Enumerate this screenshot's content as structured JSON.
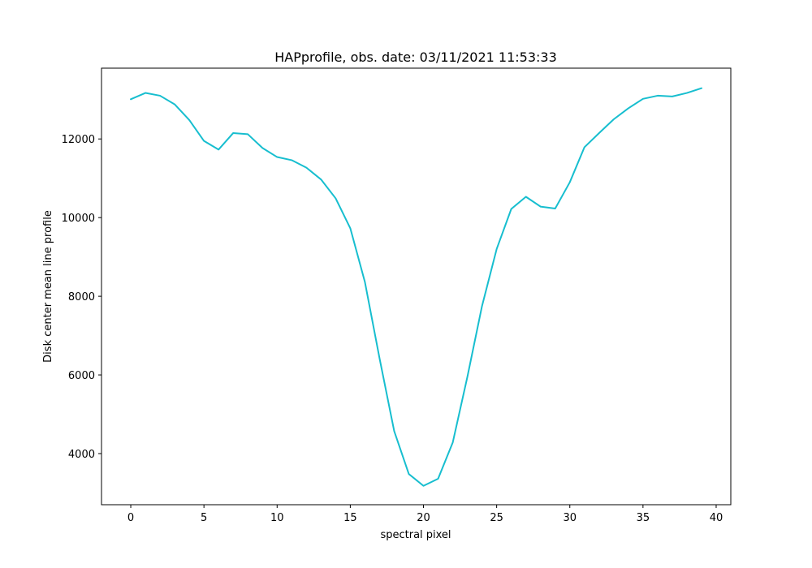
{
  "chart_data": {
    "type": "line",
    "title": "HAPprofile, obs. date: 03/11/2021 11:53:33",
    "xlabel": "spectral pixel",
    "ylabel": "Disk center mean line profile",
    "xlim": [
      -2,
      41
    ],
    "ylim": [
      2700,
      13800
    ],
    "xticks": [
      0,
      5,
      10,
      15,
      20,
      25,
      30,
      35,
      40
    ],
    "xtick_labels": [
      "0",
      "5",
      "10",
      "15",
      "20",
      "25",
      "30",
      "35",
      "40"
    ],
    "yticks": [
      4000,
      6000,
      8000,
      10000,
      12000
    ],
    "ytick_labels": [
      "4000",
      "6000",
      "8000",
      "10000",
      "12000"
    ],
    "grid": false,
    "legend": "none",
    "series": [
      {
        "color": "#17becf",
        "x": [
          0,
          1,
          2,
          3,
          4,
          5,
          6,
          7,
          8,
          9,
          10,
          11,
          12,
          13,
          14,
          15,
          16,
          17,
          18,
          19,
          20,
          21,
          22,
          23,
          24,
          25,
          26,
          27,
          28,
          29,
          30,
          31,
          32,
          33,
          34,
          35,
          36,
          37,
          38,
          39
        ],
        "y": [
          13010,
          13170,
          13100,
          12880,
          12480,
          11950,
          11730,
          12150,
          12120,
          11770,
          11540,
          11460,
          11270,
          10970,
          10490,
          9730,
          8360,
          6420,
          4570,
          3480,
          3180,
          3360,
          4280,
          5950,
          7750,
          9200,
          10220,
          10530,
          10280,
          10230,
          10900,
          11790,
          12150,
          12500,
          12780,
          13020,
          13100,
          13080,
          13170,
          13290
        ]
      }
    ]
  }
}
